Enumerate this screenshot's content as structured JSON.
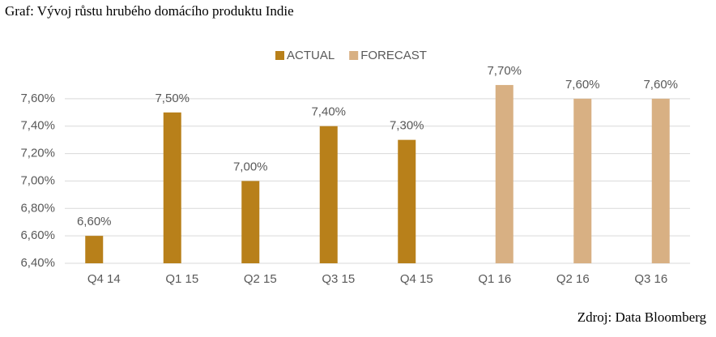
{
  "chart_data": {
    "type": "bar",
    "title": "Graf: Vývoj růstu hrubého domácího produktu Indie",
    "source": "Zdroj: Data Bloomberg",
    "categories": [
      "Q4 14",
      "Q1 15",
      "Q2 15",
      "Q3 15",
      "Q4 15",
      "Q1 16",
      "Q2 16",
      "Q3 16"
    ],
    "series": [
      {
        "name": "ACTUAL",
        "color": "#b8801a",
        "values": [
          6.6,
          7.5,
          7.0,
          7.4,
          7.3,
          null,
          null,
          null
        ],
        "value_labels": [
          "6,60%",
          "7,50%",
          "7,00%",
          "7,40%",
          "7,30%",
          null,
          null,
          null
        ]
      },
      {
        "name": "FORECAST",
        "color": "#d8b083",
        "values": [
          null,
          null,
          null,
          null,
          null,
          7.7,
          7.6,
          7.6
        ],
        "value_labels": [
          null,
          null,
          null,
          null,
          null,
          "7,70%",
          "7,60%",
          "7,60%"
        ]
      }
    ],
    "ylim": [
      6.4,
      7.8
    ],
    "yticks": [
      {
        "value": 6.4,
        "label": "6,40%"
      },
      {
        "value": 6.6,
        "label": "6,60%"
      },
      {
        "value": 6.8,
        "label": "6,80%"
      },
      {
        "value": 7.0,
        "label": "7,00%"
      },
      {
        "value": 7.2,
        "label": "7,20%"
      },
      {
        "value": 7.4,
        "label": "7,40%"
      },
      {
        "value": 7.6,
        "label": "7,60%"
      }
    ],
    "grid": true,
    "legend": "top"
  }
}
